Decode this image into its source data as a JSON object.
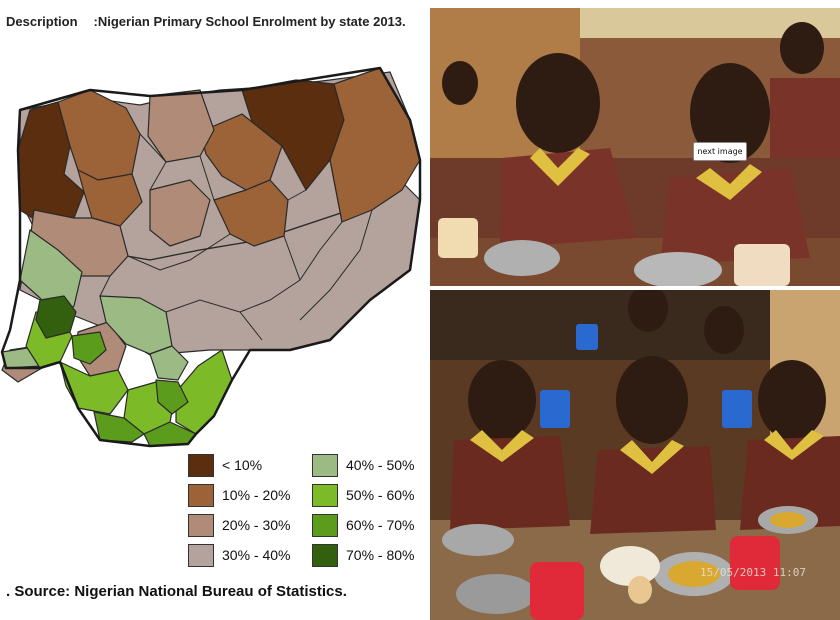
{
  "header": {
    "label": "Description",
    "title": ":Nigerian Primary School Enrolment by state 2013."
  },
  "legend": {
    "items": [
      {
        "label": "< 10%",
        "color": "#5c2e10"
      },
      {
        "label": "10% - 20%",
        "color": "#9c6238"
      },
      {
        "label": "20% - 30%",
        "color": "#b08b78"
      },
      {
        "label": "30% - 40%",
        "color": "#b3a39c"
      },
      {
        "label": "40% - 50%",
        "color": "#9cba84"
      },
      {
        "label": "50% - 60%",
        "color": "#7cba28"
      },
      {
        "label": "60% - 70%",
        "color": "#5c9c1c"
      },
      {
        "label": "70% - 80%",
        "color": "#33600f"
      }
    ]
  },
  "source": ". Source: Nigerian National Bureau of Statistics.",
  "photos": {
    "next_button": "next image",
    "timestamp": "15/05/2013 11:07"
  }
}
